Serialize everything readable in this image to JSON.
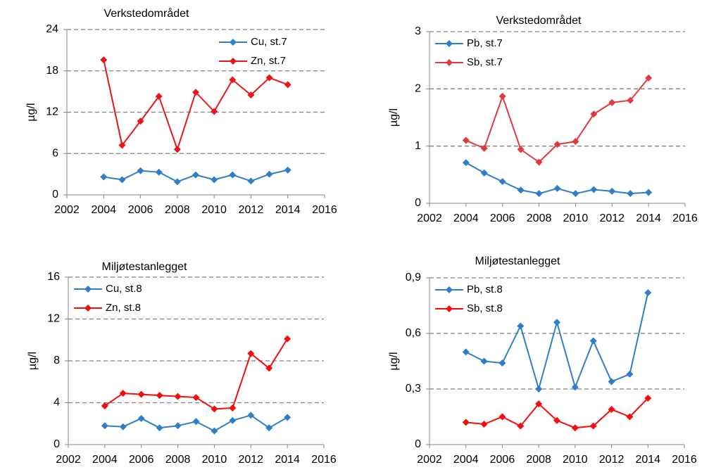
{
  "chart_data": [
    {
      "type": "line",
      "title": "Verkstedområdet",
      "ylabel": "µg/l",
      "legend": "upper right",
      "grid": true,
      "x": [
        2004,
        2005,
        2006,
        2007,
        2008,
        2009,
        2010,
        2011,
        2012,
        2013,
        2014
      ],
      "xlim": [
        2002,
        2016
      ],
      "xticks": [
        2002,
        2004,
        2006,
        2008,
        2010,
        2012,
        2014,
        2016
      ],
      "ylim": [
        0,
        24
      ],
      "yticks": [
        0,
        6,
        12,
        18,
        24
      ],
      "series": [
        {
          "name": "Cu, st.7",
          "color": "#2f7ec8",
          "values": [
            2.6,
            2.2,
            3.5,
            3.3,
            1.9,
            2.9,
            2.2,
            2.9,
            2.0,
            3.0,
            3.6
          ]
        },
        {
          "name": "Zn, st.7",
          "color": "#e8161b",
          "values": [
            19.6,
            7.2,
            10.7,
            14.3,
            6.6,
            14.9,
            12.1,
            16.7,
            14.5,
            17.0,
            16.0
          ]
        }
      ]
    },
    {
      "type": "line",
      "title": "Verkstedområdet",
      "ylabel": "µg/l",
      "legend": "upper left",
      "grid": true,
      "x": [
        2004,
        2005,
        2006,
        2007,
        2008,
        2009,
        2010,
        2011,
        2012,
        2013,
        2014
      ],
      "xlim": [
        2002,
        2016
      ],
      "xticks": [
        2002,
        2004,
        2006,
        2008,
        2010,
        2012,
        2014,
        2016
      ],
      "ylim": [
        0,
        3
      ],
      "yticks": [
        0,
        1,
        2,
        3
      ],
      "series": [
        {
          "name": "Pb, st.7",
          "color": "#2f7ec8",
          "values": [
            0.71,
            0.53,
            0.38,
            0.23,
            0.17,
            0.26,
            0.17,
            0.24,
            0.21,
            0.17,
            0.19
          ]
        },
        {
          "name": "Sb, st.7",
          "color": "#e0393e",
          "values": [
            1.1,
            0.96,
            1.87,
            0.94,
            0.72,
            1.03,
            1.08,
            1.56,
            1.76,
            1.8,
            2.19
          ]
        }
      ]
    },
    {
      "type": "line",
      "title": "Miljøtestanlegget",
      "ylabel": "µg/l",
      "legend": "upper left",
      "grid": true,
      "x": [
        2004,
        2005,
        2006,
        2007,
        2008,
        2009,
        2010,
        2011,
        2012,
        2013,
        2014
      ],
      "xlim": [
        2002,
        2016
      ],
      "xticks": [
        2002,
        2004,
        2006,
        2008,
        2010,
        2012,
        2014,
        2016
      ],
      "ylim": [
        0,
        16
      ],
      "yticks": [
        0,
        4,
        8,
        12,
        16
      ],
      "series": [
        {
          "name": "Cu, st.8",
          "color": "#2f7ec8",
          "values": [
            1.8,
            1.7,
            2.5,
            1.6,
            1.8,
            2.2,
            1.3,
            2.3,
            2.8,
            1.6,
            2.6
          ]
        },
        {
          "name": "Zn, st.8",
          "color": "#f50d0d",
          "values": [
            3.7,
            4.9,
            4.8,
            4.7,
            4.6,
            4.5,
            3.4,
            3.5,
            8.7,
            7.3,
            10.1
          ]
        }
      ]
    },
    {
      "type": "line",
      "title": "Miljøtestanlegget",
      "ylabel": "µg/l",
      "legend": "upper left",
      "grid": true,
      "x": [
        2004,
        2005,
        2006,
        2007,
        2008,
        2009,
        2010,
        2011,
        2012,
        2013,
        2014
      ],
      "xlim": [
        2002,
        2016
      ],
      "xticks": [
        2002,
        2004,
        2006,
        2008,
        2010,
        2012,
        2014,
        2016
      ],
      "ylim": [
        0,
        0.9
      ],
      "yticks": [
        0,
        {
          "value": 0.3,
          "label": "0,3"
        },
        {
          "value": 0.6,
          "label": "0,6"
        },
        {
          "value": 0.9,
          "label": "0,9"
        }
      ],
      "series": [
        {
          "name": "Pb, st.8",
          "color": "#2f7ec8",
          "values": [
            0.5,
            0.45,
            0.44,
            0.64,
            0.3,
            0.66,
            0.31,
            0.56,
            0.34,
            0.38,
            0.82
          ]
        },
        {
          "name": "Sb, st.8",
          "color": "#f50d0d",
          "values": [
            0.12,
            0.11,
            0.15,
            0.1,
            0.22,
            0.13,
            0.09,
            0.1,
            0.19,
            0.15,
            0.25
          ]
        }
      ]
    }
  ]
}
